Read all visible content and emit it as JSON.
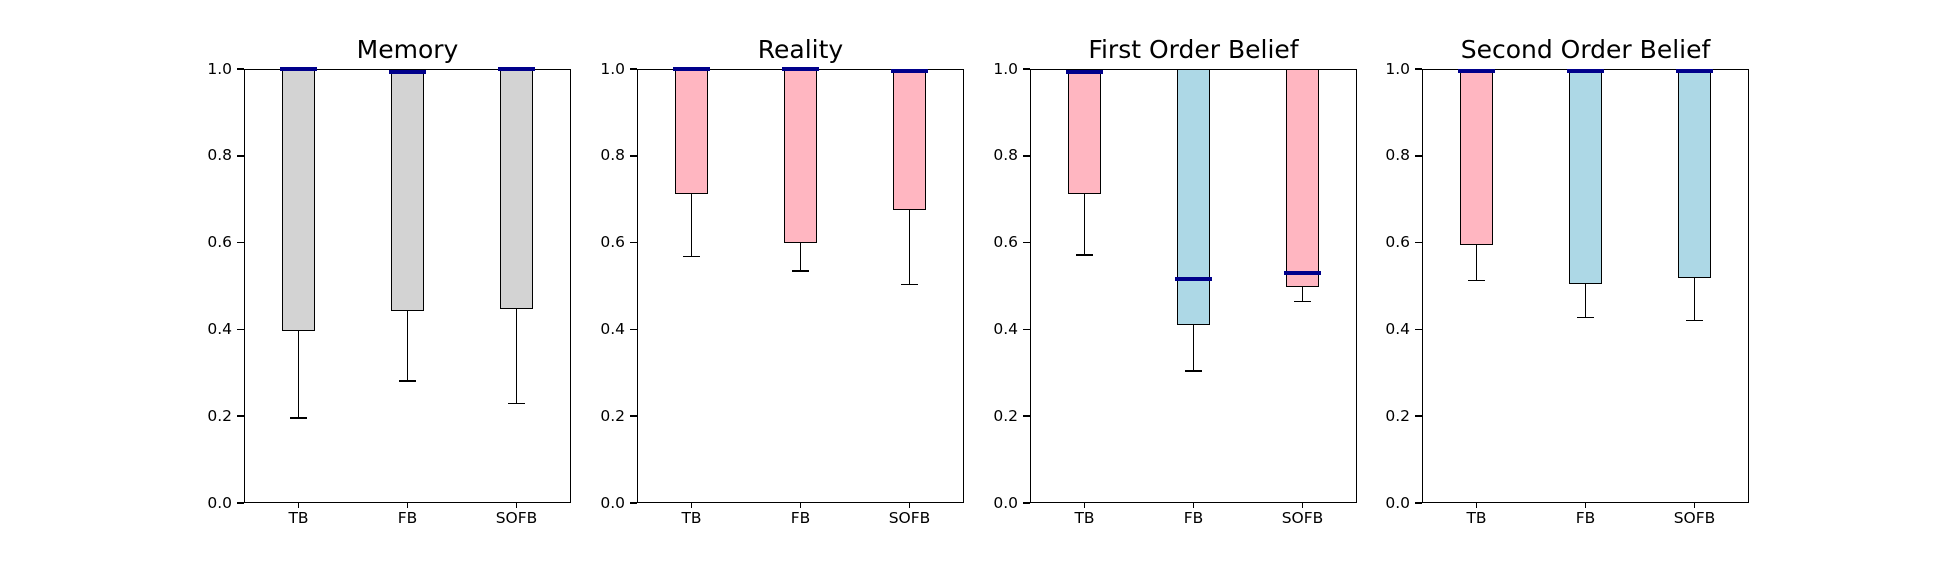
{
  "figure": {
    "background": "#ffffff"
  },
  "palette": {
    "gray": "#d3d3d3",
    "pink": "#ffb6c1",
    "blue": "#add8e6",
    "marker_navy": "#00008b",
    "edge": "#000000"
  },
  "axis": {
    "ylim": [
      0.0,
      1.0
    ],
    "yticks": [
      1.0,
      0.8,
      0.6,
      0.4,
      0.2,
      0.0
    ],
    "ytick_labels": [
      "1.0",
      "0.8",
      "0.6",
      "0.4",
      "0.2",
      "0.0"
    ],
    "categories": [
      "TB",
      "FB",
      "SOFB"
    ],
    "grid": false
  },
  "chart_data": [
    {
      "type": "bar",
      "title": "Memory",
      "categories": [
        "TB",
        "FB",
        "SOFB"
      ],
      "ylim": [
        0.0,
        1.0
      ],
      "yticks": [
        0.0,
        0.2,
        0.4,
        0.6,
        0.8,
        1.0
      ],
      "bar_span_top": 1.0,
      "bars": [
        {
          "label": "TB",
          "fill": "#d3d3d3",
          "bottom": 0.397,
          "whisker_to": 0.196,
          "marker": 0.999,
          "marker_color": "#00008b"
        },
        {
          "label": "FB",
          "fill": "#d3d3d3",
          "bottom": 0.443,
          "whisker_to": 0.281,
          "marker": 0.993,
          "marker_color": "#00008b"
        },
        {
          "label": "SOFB",
          "fill": "#d3d3d3",
          "bottom": 0.447,
          "whisker_to": 0.229,
          "marker": 0.999,
          "marker_color": "#00008b"
        }
      ]
    },
    {
      "type": "bar",
      "title": "Reality",
      "categories": [
        "TB",
        "FB",
        "SOFB"
      ],
      "ylim": [
        0.0,
        1.0
      ],
      "yticks": [
        0.0,
        0.2,
        0.4,
        0.6,
        0.8,
        1.0
      ],
      "bar_span_top": 1.0,
      "bars": [
        {
          "label": "TB",
          "fill": "#ffb6c1",
          "bottom": 0.713,
          "whisker_to": 0.568,
          "marker": 0.999,
          "marker_color": "#00008b"
        },
        {
          "label": "FB",
          "fill": "#ffb6c1",
          "bottom": 0.599,
          "whisker_to": 0.535,
          "marker": 0.999,
          "marker_color": "#00008b"
        },
        {
          "label": "SOFB",
          "fill": "#ffb6c1",
          "bottom": 0.676,
          "whisker_to": 0.503,
          "marker": 0.996,
          "marker_color": "#00008b"
        }
      ]
    },
    {
      "type": "bar",
      "title": "First Order Belief",
      "categories": [
        "TB",
        "FB",
        "SOFB"
      ],
      "ylim": [
        0.0,
        1.0
      ],
      "yticks": [
        0.0,
        0.2,
        0.4,
        0.6,
        0.8,
        1.0
      ],
      "bar_span_top": 1.0,
      "bars": [
        {
          "label": "TB",
          "fill": "#ffb6c1",
          "bottom": 0.712,
          "whisker_to": 0.571,
          "marker": 0.993,
          "marker_color": "#00008b"
        },
        {
          "label": "FB",
          "fill": "#add8e6",
          "bottom": 0.41,
          "whisker_to": 0.304,
          "marker": 0.515,
          "marker_color": "#00008b"
        },
        {
          "label": "SOFB",
          "fill": "#ffb6c1",
          "bottom": 0.497,
          "whisker_to": 0.464,
          "marker": 0.53,
          "marker_color": "#00008b"
        }
      ]
    },
    {
      "type": "bar",
      "title": "Second Order Belief",
      "categories": [
        "TB",
        "FB",
        "SOFB"
      ],
      "ylim": [
        0.0,
        1.0
      ],
      "yticks": [
        0.0,
        0.2,
        0.4,
        0.6,
        0.8,
        1.0
      ],
      "bar_span_top": 1.0,
      "bars": [
        {
          "label": "TB",
          "fill": "#ffb6c1",
          "bottom": 0.595,
          "whisker_to": 0.513,
          "marker": 0.995,
          "marker_color": "#00008b"
        },
        {
          "label": "FB",
          "fill": "#add8e6",
          "bottom": 0.505,
          "whisker_to": 0.427,
          "marker": 0.995,
          "marker_color": "#00008b"
        },
        {
          "label": "SOFB",
          "fill": "#add8e6",
          "bottom": 0.518,
          "whisker_to": 0.42,
          "marker": 0.995,
          "marker_color": "#00008b"
        }
      ]
    }
  ]
}
